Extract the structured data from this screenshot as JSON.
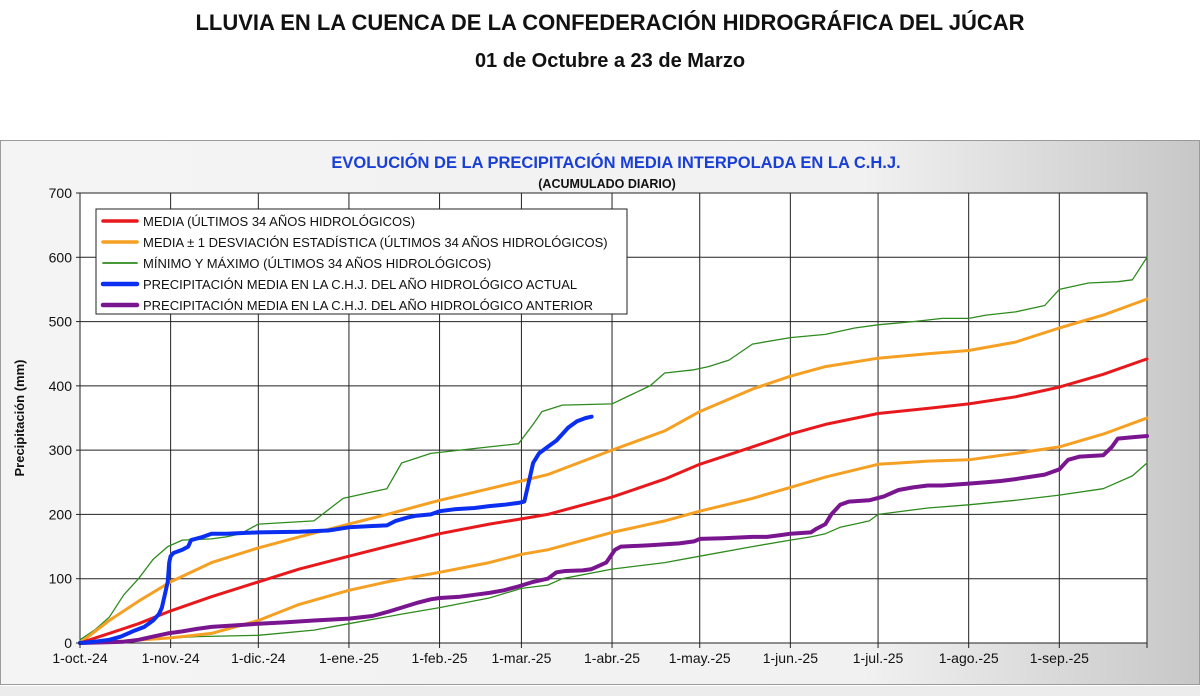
{
  "page": {
    "title": "LLUVIA EN LA CUENCA DE LA CONFEDERACIÓN HIDROGRÁFICA DEL JÚCAR",
    "subtitle": "01 de Octubre a 23 de Marzo"
  },
  "chart_data": {
    "type": "line",
    "title": "EVOLUCIÓN DE LA PRECIPITACIÓN MEDIA INTERPOLADA EN LA C.H.J.",
    "subtitle": "(ACUMULADO DIARIO)",
    "xlabel": "",
    "ylabel": "Precipitación (mm)",
    "ylim": [
      0,
      700
    ],
    "yticks": [
      0,
      100,
      200,
      300,
      400,
      500,
      600,
      700
    ],
    "x_unit": "day of hydrological year (0 = 1-oct.-24)",
    "xlim": [
      0,
      365
    ],
    "xticks": [
      {
        "x": 0,
        "label": "1-oct.-24"
      },
      {
        "x": 31,
        "label": "1-nov.-24"
      },
      {
        "x": 61,
        "label": "1-dic.-24"
      },
      {
        "x": 92,
        "label": "1-ene.-25"
      },
      {
        "x": 123,
        "label": "1-feb.-25"
      },
      {
        "x": 151,
        "label": "1-mar.-25"
      },
      {
        "x": 182,
        "label": "1-abr.-25"
      },
      {
        "x": 212,
        "label": "1-may.-25"
      },
      {
        "x": 243,
        "label": "1-jun.-25"
      },
      {
        "x": 273,
        "label": "1-jul.-25"
      },
      {
        "x": 304,
        "label": "1-ago.-25"
      },
      {
        "x": 335,
        "label": "1-sep.-25"
      }
    ],
    "grid": true,
    "legend_position": "top-left",
    "colors": {
      "title": "#1a3fd6",
      "media": "#e8191c",
      "desviacion": "#f5a023",
      "minmax": "#2e8b1e",
      "actual": "#0b2ff0",
      "anterior": "#7a1590"
    },
    "series": [
      {
        "name": "MEDIA (ÚLTIMOS 34 AÑOS HIDROLÓGICOS)",
        "style": "media",
        "points": [
          [
            0,
            0
          ],
          [
            10,
            15
          ],
          [
            20,
            30
          ],
          [
            31,
            50
          ],
          [
            45,
            72
          ],
          [
            61,
            95
          ],
          [
            75,
            115
          ],
          [
            92,
            135
          ],
          [
            105,
            150
          ],
          [
            123,
            170
          ],
          [
            140,
            185
          ],
          [
            151,
            193
          ],
          [
            160,
            200
          ],
          [
            182,
            227
          ],
          [
            200,
            255
          ],
          [
            212,
            278
          ],
          [
            230,
            305
          ],
          [
            243,
            325
          ],
          [
            255,
            340
          ],
          [
            273,
            357
          ],
          [
            290,
            365
          ],
          [
            304,
            372
          ],
          [
            320,
            383
          ],
          [
            335,
            398
          ],
          [
            350,
            418
          ],
          [
            365,
            442
          ]
        ]
      },
      {
        "name": "MEDIA ± 1 DESVIACIÓN ESTADÍSTICA (ÚLTIMOS 34 AÑOS HIDROLÓGICOS)",
        "style": "desviacion",
        "points": [
          [
            0,
            0
          ],
          [
            10,
            35
          ],
          [
            20,
            65
          ],
          [
            31,
            95
          ],
          [
            45,
            125
          ],
          [
            61,
            148
          ],
          [
            75,
            165
          ],
          [
            92,
            185
          ],
          [
            105,
            200
          ],
          [
            123,
            222
          ],
          [
            140,
            240
          ],
          [
            151,
            252
          ],
          [
            160,
            262
          ],
          [
            182,
            300
          ],
          [
            200,
            330
          ],
          [
            212,
            360
          ],
          [
            230,
            395
          ],
          [
            243,
            415
          ],
          [
            255,
            430
          ],
          [
            273,
            443
          ],
          [
            290,
            450
          ],
          [
            304,
            455
          ],
          [
            320,
            468
          ],
          [
            335,
            490
          ],
          [
            350,
            510
          ],
          [
            365,
            535
          ]
        ]
      },
      {
        "name": "",
        "style": "desviacion",
        "points": [
          [
            0,
            0
          ],
          [
            15,
            3
          ],
          [
            31,
            8
          ],
          [
            45,
            15
          ],
          [
            61,
            35
          ],
          [
            75,
            60
          ],
          [
            92,
            82
          ],
          [
            105,
            95
          ],
          [
            123,
            110
          ],
          [
            140,
            125
          ],
          [
            151,
            138
          ],
          [
            160,
            145
          ],
          [
            182,
            172
          ],
          [
            200,
            190
          ],
          [
            212,
            205
          ],
          [
            230,
            225
          ],
          [
            243,
            242
          ],
          [
            255,
            258
          ],
          [
            273,
            278
          ],
          [
            290,
            283
          ],
          [
            304,
            285
          ],
          [
            320,
            295
          ],
          [
            335,
            305
          ],
          [
            350,
            325
          ],
          [
            365,
            350
          ]
        ]
      },
      {
        "name": "MÍNIMO Y MÁXIMO (ÚLTIMOS 34 AÑOS HIDROLÓGICOS)",
        "style": "minmax",
        "points": [
          [
            0,
            5
          ],
          [
            5,
            20
          ],
          [
            10,
            40
          ],
          [
            15,
            75
          ],
          [
            20,
            100
          ],
          [
            25,
            130
          ],
          [
            30,
            150
          ],
          [
            35,
            160
          ],
          [
            45,
            162
          ],
          [
            50,
            165
          ],
          [
            55,
            170
          ],
          [
            61,
            185
          ],
          [
            80,
            190
          ],
          [
            90,
            225
          ],
          [
            100,
            235
          ],
          [
            105,
            240
          ],
          [
            110,
            280
          ],
          [
            120,
            295
          ],
          [
            130,
            300
          ],
          [
            140,
            305
          ],
          [
            150,
            310
          ],
          [
            155,
            340
          ],
          [
            158,
            360
          ],
          [
            165,
            370
          ],
          [
            182,
            372
          ],
          [
            188,
            385
          ],
          [
            195,
            400
          ],
          [
            200,
            420
          ],
          [
            210,
            425
          ],
          [
            215,
            430
          ],
          [
            222,
            440
          ],
          [
            230,
            465
          ],
          [
            243,
            475
          ],
          [
            255,
            480
          ],
          [
            265,
            490
          ],
          [
            273,
            495
          ],
          [
            285,
            500
          ],
          [
            295,
            505
          ],
          [
            304,
            505
          ],
          [
            310,
            510
          ],
          [
            320,
            515
          ],
          [
            330,
            525
          ],
          [
            335,
            550
          ],
          [
            345,
            560
          ],
          [
            355,
            562
          ],
          [
            360,
            565
          ],
          [
            365,
            600
          ]
        ]
      },
      {
        "name": "",
        "style": "minmax",
        "points": [
          [
            0,
            0
          ],
          [
            20,
            5
          ],
          [
            40,
            10
          ],
          [
            61,
            12
          ],
          [
            80,
            20
          ],
          [
            92,
            30
          ],
          [
            110,
            45
          ],
          [
            123,
            55
          ],
          [
            140,
            70
          ],
          [
            151,
            85
          ],
          [
            160,
            90
          ],
          [
            165,
            100
          ],
          [
            182,
            115
          ],
          [
            200,
            125
          ],
          [
            212,
            135
          ],
          [
            230,
            150
          ],
          [
            243,
            160
          ],
          [
            250,
            165
          ],
          [
            255,
            170
          ],
          [
            260,
            180
          ],
          [
            265,
            185
          ],
          [
            270,
            190
          ],
          [
            273,
            200
          ],
          [
            290,
            210
          ],
          [
            304,
            215
          ],
          [
            320,
            222
          ],
          [
            335,
            230
          ],
          [
            350,
            240
          ],
          [
            360,
            260
          ],
          [
            365,
            280
          ]
        ]
      },
      {
        "name": "PRECIPITACIÓN MEDIA EN LA C.H.J. DEL AÑO HIDROLÓGICO ACTUAL",
        "style": "actual",
        "points": [
          [
            0,
            0
          ],
          [
            5,
            2
          ],
          [
            10,
            5
          ],
          [
            14,
            10
          ],
          [
            18,
            18
          ],
          [
            22,
            25
          ],
          [
            25,
            35
          ],
          [
            27,
            45
          ],
          [
            28,
            55
          ],
          [
            29,
            75
          ],
          [
            30,
            95
          ],
          [
            30.5,
            125
          ],
          [
            31,
            135
          ],
          [
            32,
            140
          ],
          [
            35,
            145
          ],
          [
            37,
            150
          ],
          [
            38,
            160
          ],
          [
            42,
            165
          ],
          [
            45,
            170
          ],
          [
            50,
            170
          ],
          [
            61,
            172
          ],
          [
            75,
            173
          ],
          [
            85,
            175
          ],
          [
            92,
            180
          ],
          [
            100,
            182
          ],
          [
            105,
            183
          ],
          [
            108,
            190
          ],
          [
            112,
            195
          ],
          [
            115,
            198
          ],
          [
            120,
            200
          ],
          [
            123,
            205
          ],
          [
            128,
            208
          ],
          [
            135,
            210
          ],
          [
            140,
            213
          ],
          [
            145,
            215
          ],
          [
            150,
            218
          ],
          [
            152,
            220
          ],
          [
            153,
            240
          ],
          [
            154,
            260
          ],
          [
            155,
            280
          ],
          [
            157,
            295
          ],
          [
            160,
            305
          ],
          [
            163,
            315
          ],
          [
            165,
            325
          ],
          [
            167,
            335
          ],
          [
            170,
            345
          ],
          [
            173,
            350
          ],
          [
            175,
            352
          ]
        ]
      },
      {
        "name": "PRECIPITACIÓN MEDIA EN LA C.H.J. DEL AÑO HIDROLÓGICO ANTERIOR",
        "style": "anterior",
        "points": [
          [
            0,
            0
          ],
          [
            15,
            2
          ],
          [
            20,
            5
          ],
          [
            25,
            10
          ],
          [
            30,
            15
          ],
          [
            35,
            18
          ],
          [
            40,
            22
          ],
          [
            45,
            25
          ],
          [
            55,
            28
          ],
          [
            61,
            30
          ],
          [
            70,
            32
          ],
          [
            80,
            35
          ],
          [
            92,
            38
          ],
          [
            100,
            42
          ],
          [
            105,
            48
          ],
          [
            110,
            55
          ],
          [
            115,
            62
          ],
          [
            120,
            68
          ],
          [
            123,
            70
          ],
          [
            130,
            72
          ],
          [
            135,
            75
          ],
          [
            140,
            78
          ],
          [
            145,
            82
          ],
          [
            150,
            88
          ],
          [
            155,
            95
          ],
          [
            160,
            100
          ],
          [
            163,
            110
          ],
          [
            166,
            112
          ],
          [
            172,
            113
          ],
          [
            175,
            115
          ],
          [
            180,
            125
          ],
          [
            183,
            145
          ],
          [
            185,
            150
          ],
          [
            195,
            152
          ],
          [
            205,
            155
          ],
          [
            210,
            158
          ],
          [
            212,
            162
          ],
          [
            220,
            163
          ],
          [
            230,
            165
          ],
          [
            235,
            165
          ],
          [
            240,
            168
          ],
          [
            243,
            170
          ],
          [
            250,
            172
          ],
          [
            252,
            178
          ],
          [
            255,
            185
          ],
          [
            257,
            200
          ],
          [
            260,
            215
          ],
          [
            263,
            220
          ],
          [
            270,
            222
          ],
          [
            275,
            228
          ],
          [
            280,
            238
          ],
          [
            285,
            242
          ],
          [
            290,
            245
          ],
          [
            295,
            245
          ],
          [
            304,
            248
          ],
          [
            310,
            250
          ],
          [
            315,
            252
          ],
          [
            320,
            255
          ],
          [
            330,
            262
          ],
          [
            335,
            270
          ],
          [
            338,
            285
          ],
          [
            342,
            290
          ],
          [
            350,
            292
          ],
          [
            353,
            305
          ],
          [
            355,
            318
          ],
          [
            360,
            320
          ],
          [
            365,
            322
          ]
        ]
      }
    ]
  }
}
